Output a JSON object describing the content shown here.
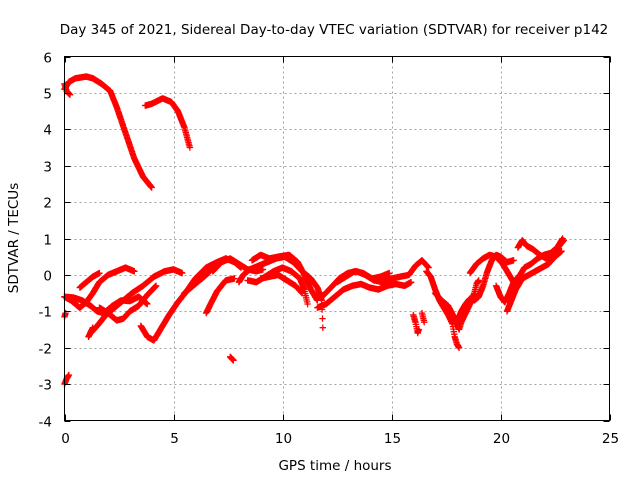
{
  "chart_data": {
    "type": "scatter",
    "title": "Day 345 of 2021, Sidereal Day-to-day VTEC variation (SDTVAR) for receiver p142",
    "xlabel": "GPS time / hours",
    "ylabel": "SDTVAR / TECUs",
    "xlim": [
      0,
      25
    ],
    "ylim": [
      -4,
      6
    ],
    "xticks": [
      0,
      5,
      10,
      15,
      20,
      25
    ],
    "yticks": [
      -4,
      -3,
      -2,
      -1,
      0,
      1,
      2,
      3,
      4,
      5,
      6
    ],
    "xtick_labels": [
      "0",
      "5",
      "10",
      "15",
      "20",
      "25"
    ],
    "ytick_labels": [
      "-4",
      "-3",
      "-2",
      "-1",
      "0",
      "1",
      "2",
      "3",
      "4",
      "5",
      "6"
    ],
    "grid": true,
    "marker": "+",
    "series": [
      {
        "name": "p142",
        "color": "#ff0000",
        "segments": [
          [
            [
              0.0,
              5.1
            ],
            [
              0.2,
              5.3
            ],
            [
              0.5,
              5.4
            ],
            [
              1.0,
              5.45
            ],
            [
              1.3,
              5.4
            ],
            [
              1.7,
              5.25
            ],
            [
              2.1,
              5.05
            ],
            [
              2.4,
              4.6
            ],
            [
              2.8,
              3.9
            ],
            [
              3.2,
              3.2
            ],
            [
              3.6,
              2.7
            ],
            [
              4.0,
              2.4
            ]
          ],
          [
            [
              0.0,
              5.25
            ],
            [
              0.1,
              5.05
            ],
            [
              0.25,
              4.95
            ]
          ],
          [
            [
              3.7,
              4.65
            ],
            [
              4.0,
              4.7
            ],
            [
              4.5,
              4.85
            ],
            [
              4.9,
              4.75
            ],
            [
              5.2,
              4.5
            ],
            [
              5.5,
              4.05
            ],
            [
              5.75,
              3.5
            ]
          ],
          [
            [
              0.0,
              -0.6
            ],
            [
              0.3,
              -0.7
            ],
            [
              0.7,
              -0.9
            ],
            [
              1.0,
              -0.75
            ],
            [
              1.3,
              -0.5
            ],
            [
              1.6,
              -0.2
            ],
            [
              2.0,
              0.0
            ],
            [
              2.4,
              0.1
            ],
            [
              2.8,
              0.2
            ],
            [
              3.2,
              0.1
            ]
          ],
          [
            [
              0.0,
              -0.6
            ],
            [
              0.4,
              -0.62
            ],
            [
              0.8,
              -0.7
            ],
            [
              1.2,
              -0.85
            ],
            [
              1.5,
              -1.0
            ],
            [
              1.8,
              -1.05
            ],
            [
              2.2,
              -0.85
            ],
            [
              2.6,
              -0.7
            ],
            [
              3.0,
              -0.72
            ],
            [
              3.4,
              -0.6
            ],
            [
              3.8,
              -0.8
            ]
          ],
          [
            [
              0.7,
              -0.35
            ],
            [
              1.0,
              -0.2
            ],
            [
              1.3,
              -0.05
            ],
            [
              1.6,
              0.05
            ]
          ],
          [
            [
              1.2,
              -1.6
            ],
            [
              1.5,
              -1.4
            ],
            [
              1.9,
              -1.1
            ],
            [
              2.3,
              -0.9
            ],
            [
              2.7,
              -0.7
            ],
            [
              3.1,
              -0.5
            ],
            [
              3.6,
              -0.3
            ],
            [
              4.1,
              -0.05
            ],
            [
              4.6,
              0.1
            ],
            [
              5.0,
              0.15
            ],
            [
              5.4,
              0.05
            ]
          ],
          [
            [
              1.1,
              -1.7
            ],
            [
              1.3,
              -1.45
            ]
          ],
          [
            [
              1.6,
              -0.9
            ],
            [
              2.0,
              -1.05
            ],
            [
              2.4,
              -1.25
            ],
            [
              2.7,
              -1.2
            ],
            [
              3.0,
              -1.0
            ],
            [
              3.4,
              -0.85
            ],
            [
              3.8,
              -0.55
            ],
            [
              4.2,
              -0.3
            ]
          ],
          [
            [
              3.5,
              -1.4
            ],
            [
              3.8,
              -1.7
            ],
            [
              4.1,
              -1.8
            ],
            [
              4.4,
              -1.5
            ],
            [
              4.8,
              -1.1
            ],
            [
              5.2,
              -0.75
            ],
            [
              5.6,
              -0.45
            ],
            [
              6.0,
              -0.1
            ],
            [
              6.5,
              0.2
            ],
            [
              7.0,
              0.35
            ],
            [
              7.4,
              0.45
            ],
            [
              7.8,
              0.35
            ],
            [
              8.1,
              0.2
            ]
          ],
          [
            [
              5.5,
              -0.5
            ],
            [
              6.0,
              -0.25
            ],
            [
              6.5,
              0.0
            ],
            [
              7.0,
              0.3
            ],
            [
              7.4,
              0.45
            ]
          ],
          [
            [
              6.5,
              -1.05
            ],
            [
              6.7,
              -0.8
            ],
            [
              7.0,
              -0.45
            ],
            [
              7.4,
              -0.15
            ],
            [
              7.8,
              -0.1
            ]
          ],
          [
            [
              6.8,
              0.1
            ],
            [
              7.2,
              0.35
            ],
            [
              7.6,
              0.45
            ],
            [
              8.0,
              0.3
            ],
            [
              8.4,
              0.15
            ],
            [
              8.8,
              0.1
            ],
            [
              9.1,
              0.15
            ]
          ],
          [
            [
              7.6,
              -2.25
            ],
            [
              7.75,
              -2.35
            ]
          ],
          [
            [
              8.0,
              -0.2
            ],
            [
              8.2,
              0.0
            ],
            [
              8.5,
              0.15
            ],
            [
              8.9,
              0.25
            ],
            [
              9.3,
              0.35
            ],
            [
              9.7,
              0.45
            ],
            [
              10.1,
              0.5
            ],
            [
              10.5,
              0.35
            ],
            [
              10.9,
              0.1
            ],
            [
              11.3,
              -0.1
            ],
            [
              11.6,
              -0.35
            ],
            [
              11.8,
              -0.7
            ],
            [
              11.85,
              -1.45
            ]
          ],
          [
            [
              8.4,
              -0.15
            ],
            [
              8.8,
              -0.2
            ],
            [
              9.2,
              -0.05
            ],
            [
              9.6,
              0.1
            ],
            [
              10.0,
              0.2
            ],
            [
              10.4,
              0.1
            ],
            [
              10.8,
              -0.1
            ],
            [
              11.0,
              -0.4
            ],
            [
              11.15,
              -0.8
            ]
          ],
          [
            [
              8.6,
              0.4
            ],
            [
              9.0,
              0.55
            ],
            [
              9.4,
              0.45
            ],
            [
              9.8,
              0.5
            ],
            [
              10.3,
              0.55
            ],
            [
              10.7,
              0.35
            ],
            [
              11.0,
              0.0
            ],
            [
              11.3,
              -0.4
            ],
            [
              11.6,
              -0.7
            ]
          ],
          [
            [
              9.0,
              -0.1
            ],
            [
              9.4,
              -0.05
            ],
            [
              9.8,
              0.0
            ],
            [
              10.2,
              -0.15
            ],
            [
              10.6,
              -0.3
            ],
            [
              10.9,
              -0.5
            ]
          ],
          [
            [
              11.5,
              -0.6
            ],
            [
              11.9,
              -0.55
            ],
            [
              12.3,
              -0.3
            ],
            [
              12.6,
              -0.1
            ],
            [
              13.0,
              0.05
            ],
            [
              13.4,
              0.1
            ],
            [
              13.8,
              0.0
            ],
            [
              14.2,
              -0.15
            ],
            [
              14.6,
              -0.2
            ],
            [
              15.0,
              -0.1
            ],
            [
              15.4,
              -0.05
            ],
            [
              15.8,
              0.0
            ],
            [
              16.1,
              0.25
            ],
            [
              16.4,
              0.4
            ],
            [
              16.7,
              0.2
            ]
          ],
          [
            [
              11.6,
              -0.9
            ],
            [
              12.0,
              -0.8
            ],
            [
              12.4,
              -0.6
            ],
            [
              12.8,
              -0.4
            ],
            [
              13.2,
              -0.3
            ],
            [
              13.6,
              -0.25
            ],
            [
              14.0,
              -0.35
            ],
            [
              14.4,
              -0.4
            ],
            [
              14.8,
              -0.3
            ],
            [
              15.2,
              -0.25
            ],
            [
              15.6,
              -0.3
            ],
            [
              15.9,
              -0.2
            ]
          ],
          [
            [
              12.5,
              -0.2
            ],
            [
              12.9,
              -0.05
            ],
            [
              13.3,
              0.1
            ],
            [
              13.7,
              0.05
            ],
            [
              14.1,
              -0.1
            ],
            [
              14.5,
              -0.05
            ],
            [
              14.9,
              0.05
            ]
          ],
          [
            [
              16.0,
              -1.1
            ],
            [
              16.1,
              -1.3
            ],
            [
              16.2,
              -1.6
            ],
            [
              16.25,
              -1.5
            ]
          ],
          [
            [
              16.4,
              -1.05
            ],
            [
              16.5,
              -1.3
            ]
          ],
          [
            [
              16.6,
              0.1
            ],
            [
              16.8,
              -0.05
            ],
            [
              17.0,
              -0.4
            ],
            [
              17.2,
              -0.7
            ],
            [
              17.4,
              -0.9
            ],
            [
              17.6,
              -1.1
            ],
            [
              17.8,
              -1.35
            ],
            [
              17.9,
              -1.7
            ],
            [
              18.0,
              -1.9
            ],
            [
              18.1,
              -2.0
            ]
          ],
          [
            [
              17.0,
              -0.5
            ],
            [
              17.3,
              -0.7
            ],
            [
              17.6,
              -0.85
            ],
            [
              17.9,
              -1.2
            ],
            [
              18.1,
              -1.5
            ],
            [
              18.2,
              -1.3
            ],
            [
              18.4,
              -1.05
            ],
            [
              18.6,
              -0.8
            ],
            [
              18.8,
              -0.5
            ],
            [
              18.9,
              -0.25
            ],
            [
              19.0,
              -0.15
            ]
          ],
          [
            [
              18.0,
              -1.3
            ],
            [
              18.2,
              -1.0
            ],
            [
              18.4,
              -0.8
            ],
            [
              18.6,
              -0.65
            ],
            [
              18.8,
              -0.7
            ],
            [
              19.0,
              -0.6
            ],
            [
              19.2,
              -0.3
            ],
            [
              19.4,
              0.1
            ],
            [
              19.6,
              0.4
            ],
            [
              19.8,
              0.55
            ],
            [
              20.0,
              0.5
            ],
            [
              20.3,
              0.35
            ],
            [
              20.6,
              0.4
            ]
          ],
          [
            [
              18.6,
              0.05
            ],
            [
              18.9,
              0.3
            ],
            [
              19.2,
              0.45
            ],
            [
              19.5,
              0.55
            ],
            [
              19.8,
              0.5
            ],
            [
              20.1,
              0.3
            ],
            [
              20.4,
              0.0
            ],
            [
              20.6,
              -0.2
            ]
          ],
          [
            [
              19.8,
              -0.3
            ],
            [
              20.0,
              -0.6
            ],
            [
              20.2,
              -0.75
            ],
            [
              20.4,
              -0.5
            ],
            [
              20.6,
              -0.2
            ],
            [
              20.9,
              0.0
            ],
            [
              21.1,
              0.2
            ],
            [
              21.4,
              0.3
            ],
            [
              21.7,
              0.45
            ],
            [
              22.0,
              0.55
            ],
            [
              22.3,
              0.6
            ],
            [
              22.6,
              0.75
            ],
            [
              22.85,
              1.0
            ]
          ],
          [
            [
              20.3,
              -1.0
            ],
            [
              20.5,
              -0.7
            ],
            [
              20.7,
              -0.4
            ],
            [
              21.0,
              -0.1
            ],
            [
              21.3,
              0.0
            ],
            [
              21.6,
              0.1
            ],
            [
              21.9,
              0.2
            ],
            [
              22.2,
              0.3
            ],
            [
              22.5,
              0.5
            ],
            [
              22.8,
              0.65
            ]
          ],
          [
            [
              20.8,
              0.75
            ],
            [
              21.0,
              0.95
            ],
            [
              21.2,
              0.8
            ],
            [
              21.5,
              0.7
            ],
            [
              21.8,
              0.55
            ],
            [
              22.1,
              0.45
            ],
            [
              22.4,
              0.5
            ],
            [
              22.7,
              0.8
            ],
            [
              22.9,
              0.95
            ]
          ],
          [
            [
              0.0,
              -3.0
            ],
            [
              0.1,
              -2.85
            ],
            [
              0.2,
              -2.75
            ]
          ],
          [
            [
              0.0,
              -1.15
            ],
            [
              0.05,
              -1.05
            ]
          ]
        ]
      }
    ]
  }
}
